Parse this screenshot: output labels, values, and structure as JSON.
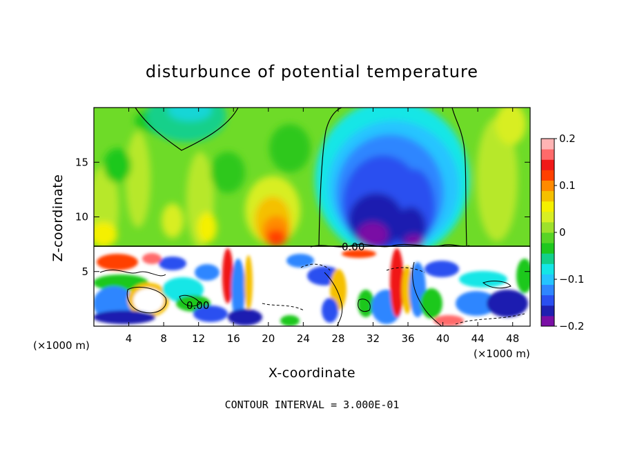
{
  "chart_data": {
    "type": "heatmap",
    "title": "disturbunce of potential temperature",
    "xlabel": "X-coordinate",
    "ylabel": "Z-coordinate",
    "x_unit_label": "(×1000 m)",
    "z_unit_label": "(×1000 m)",
    "xlim": [
      0,
      50
    ],
    "ylim": [
      0,
      20
    ],
    "x_ticks": [
      4,
      8,
      12,
      16,
      20,
      24,
      28,
      32,
      36,
      40,
      44,
      48
    ],
    "y_ticks": [
      5,
      10,
      15
    ],
    "colorbar": {
      "range": [
        -0.2,
        0.2
      ],
      "tick_values": [
        0.2,
        0.1,
        0,
        -0.1,
        -0.2
      ],
      "tick_labels": [
        "0.2",
        "0.1",
        "0",
        "−0.1",
        "−0.2"
      ],
      "colors": [
        "#7a0fa5",
        "#1f1fb0",
        "#2a4ff0",
        "#2f86ff",
        "#25c4ff",
        "#14e6e6",
        "#12d08a",
        "#1ec81e",
        "#58d426",
        "#9ee12c",
        "#d8ee24",
        "#f5f000",
        "#f5c000",
        "#ff8a00",
        "#ff4000",
        "#f01818",
        "#ff6a6a",
        "#ffb4b4"
      ]
    },
    "contour_interval_text": "CONTOUR INTERVAL = 3.000E-01",
    "contour_label": "0.00",
    "upper_layer_top_km": 7.3
  }
}
